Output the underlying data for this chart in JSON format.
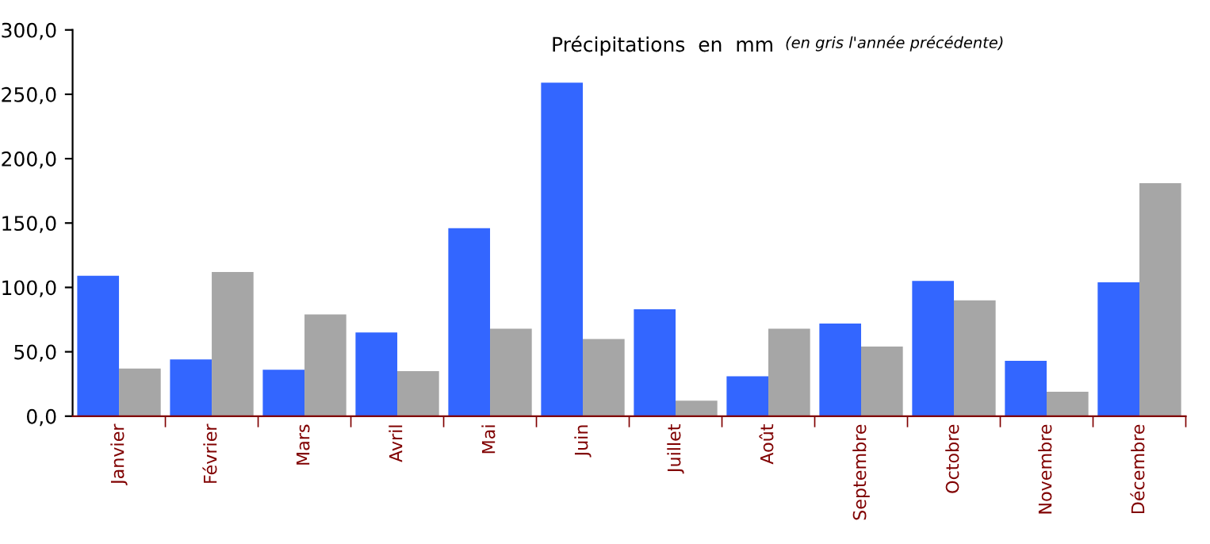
{
  "chart_data": {
    "type": "bar",
    "title": "Précipitations  en  mm",
    "subtitle": "(en gris l'année précédente)",
    "categories": [
      "Janvier",
      "Février",
      "Mars",
      "Avril",
      "Mai",
      "Juin",
      "Juillet",
      "Août",
      "Septembre",
      "Octobre",
      "Novembre",
      "Décembre"
    ],
    "series": [
      {
        "color": "#3366ff",
        "values": [
          109,
          44,
          36,
          65,
          146,
          259,
          83,
          31,
          72,
          105,
          43,
          104
        ]
      },
      {
        "color": "#a6a6a6",
        "values": [
          37,
          112,
          79,
          35,
          68,
          60,
          12,
          68,
          54,
          90,
          19,
          181
        ]
      }
    ],
    "ylim": [
      0,
      300
    ],
    "yticks": [
      {
        "value": 0,
        "label": "0,0"
      },
      {
        "value": 50,
        "label": "50,0"
      },
      {
        "value": 100,
        "label": "100,0"
      },
      {
        "value": 150,
        "label": "150,0"
      },
      {
        "value": 200,
        "label": "200,0"
      },
      {
        "value": 250,
        "label": "250,0"
      },
      {
        "value": 300,
        "label": "300,0"
      }
    ],
    "grid": false,
    "legend": false
  }
}
